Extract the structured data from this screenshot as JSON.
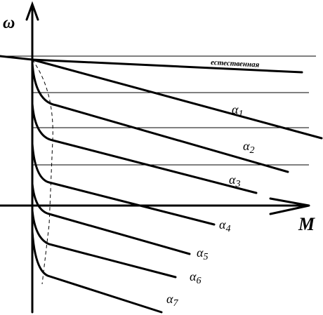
{
  "axes": {
    "y_label": "ω",
    "x_label": "M"
  },
  "curves": [
    {
      "label": "естественная"
    },
    {
      "label": "α",
      "sub": "1"
    },
    {
      "label": "α",
      "sub": "2"
    },
    {
      "label": "α",
      "sub": "3"
    },
    {
      "label": "α",
      "sub": "4"
    },
    {
      "label": "α",
      "sub": "5"
    },
    {
      "label": "α",
      "sub": "6"
    },
    {
      "label": "α",
      "sub": "7"
    }
  ]
}
